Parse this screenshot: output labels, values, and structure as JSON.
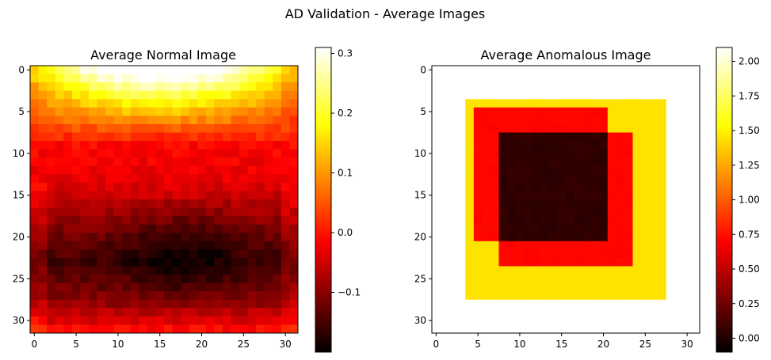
{
  "figure": {
    "suptitle": "AD Validation - Average Images"
  },
  "chart_data": [
    {
      "type": "heatmap",
      "title": "Average Normal Image",
      "colormap": "hot",
      "shape": [
        32,
        32
      ],
      "x_ticks": [
        "0",
        "5",
        "10",
        "15",
        "20",
        "25",
        "30"
      ],
      "y_ticks": [
        "0",
        "5",
        "10",
        "15",
        "20",
        "25",
        "30"
      ],
      "value_range": [
        -0.2,
        0.31
      ],
      "colorbar_ticks": [
        "-0.1",
        "0.0",
        "0.1",
        "0.2",
        "0.3"
      ],
      "profile": {
        "row_anchors": [
          [
            0,
            0.3
          ],
          [
            3,
            0.18
          ],
          [
            6,
            0.08
          ],
          [
            9,
            -0.01
          ],
          [
            13,
            -0.03
          ],
          [
            17,
            -0.08
          ],
          [
            20,
            -0.12
          ],
          [
            23,
            -0.15
          ],
          [
            26,
            -0.12
          ],
          [
            28,
            -0.09
          ],
          [
            30,
            -0.04
          ],
          [
            31,
            -0.01
          ]
        ],
        "notes": "bright top center, dark band rows 17-28, center-right darkest"
      }
    },
    {
      "type": "heatmap",
      "title": "Average Anomalous Image",
      "colormap": "hot",
      "shape": [
        32,
        32
      ],
      "x_ticks": [
        "0",
        "5",
        "10",
        "15",
        "20",
        "25",
        "30"
      ],
      "y_ticks": [
        "0",
        "5",
        "10",
        "15",
        "20",
        "25",
        "30"
      ],
      "value_range": [
        -0.1,
        2.1
      ],
      "colorbar_ticks": [
        "0.00",
        "0.25",
        "0.50",
        "0.75",
        "1.00",
        "1.25",
        "1.50",
        "1.75",
        "2.00"
      ],
      "regions": [
        {
          "rows": [
            0,
            31
          ],
          "cols": [
            0,
            31
          ],
          "value": 2.1
        },
        {
          "rows": [
            4,
            27
          ],
          "cols": [
            4,
            27
          ],
          "value": 1.45
        },
        {
          "rows": [
            5,
            20
          ],
          "cols": [
            5,
            20
          ],
          "value": 0.72
        },
        {
          "rows": [
            8,
            23
          ],
          "cols": [
            8,
            23
          ],
          "value": 0.72
        },
        {
          "rows": [
            8,
            20
          ],
          "cols": [
            8,
            20
          ],
          "value": 0.05
        }
      ]
    }
  ]
}
